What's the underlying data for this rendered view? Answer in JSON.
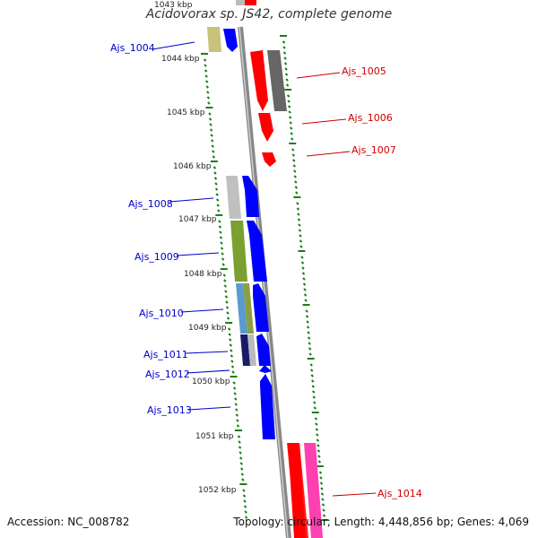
{
  "title": "Acidovorax sp. JS42, complete genome",
  "accession": "Accession: NC_008782",
  "topology": "Topology: circular; Length: 4,448,856 bp; Genes: 4,069",
  "colors": {
    "backbone": "#888888",
    "forward_label": "#0000cc",
    "reverse_label": "#cc0000",
    "tick": "#1a7f1a"
  },
  "ruler": {
    "top_clipped_label": "1043 kbp",
    "labels": [
      "1044 kbp",
      "1045 kbp",
      "1046 kbp",
      "1047 kbp",
      "1048 kbp",
      "1049 kbp",
      "1050 kbp",
      "1051 kbp",
      "1052 kbp"
    ]
  },
  "genes": [
    {
      "name": "Ajs_1004",
      "strand": "forward"
    },
    {
      "name": "Ajs_1005",
      "strand": "reverse"
    },
    {
      "name": "Ajs_1006",
      "strand": "reverse"
    },
    {
      "name": "Ajs_1007",
      "strand": "reverse"
    },
    {
      "name": "Ajs_1008",
      "strand": "forward"
    },
    {
      "name": "Ajs_1009",
      "strand": "forward"
    },
    {
      "name": "Ajs_1010",
      "strand": "forward"
    },
    {
      "name": "Ajs_1011",
      "strand": "forward"
    },
    {
      "name": "Ajs_1012",
      "strand": "forward"
    },
    {
      "name": "Ajs_1013",
      "strand": "forward"
    },
    {
      "name": "Ajs_1014",
      "strand": "reverse"
    }
  ]
}
